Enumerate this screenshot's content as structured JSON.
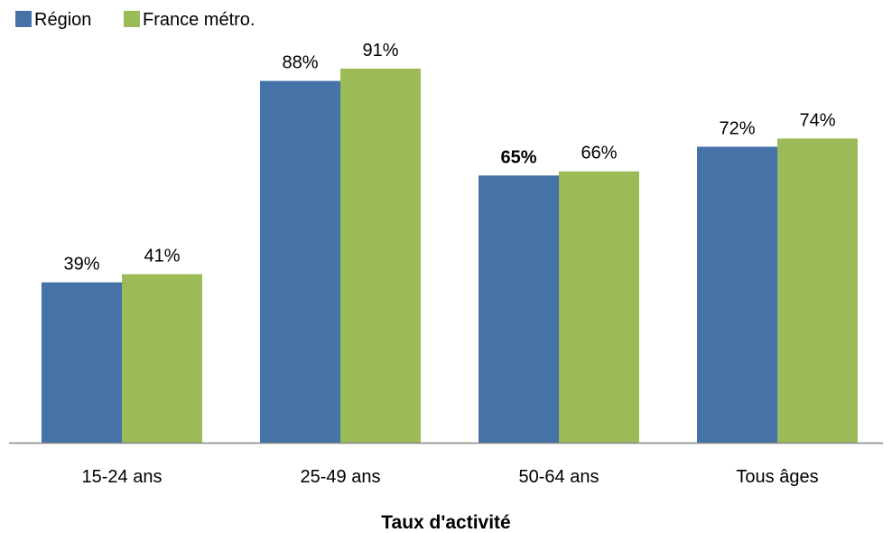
{
  "chart_data": {
    "type": "bar",
    "categories": [
      "15-24 ans",
      "25-49 ans",
      "50-64 ans",
      "Tous âges"
    ],
    "series": [
      {
        "name": "Région",
        "color": "#4572A7",
        "values": [
          39,
          88,
          65,
          72
        ],
        "labels": [
          "39%",
          "88%",
          "65%",
          "72%"
        ],
        "bold_labels": [
          false,
          false,
          true,
          false
        ]
      },
      {
        "name": "France métro.",
        "color": "#9BBB59",
        "values": [
          41,
          91,
          66,
          74
        ],
        "labels": [
          "41%",
          "91%",
          "66%",
          "74%"
        ],
        "bold_labels": [
          false,
          false,
          false,
          false
        ]
      }
    ],
    "xlabel": "Taux d'activité",
    "ylim": [
      0,
      100
    ],
    "grid": false,
    "legend_position": "top-left",
    "axis_color": "#868686"
  }
}
